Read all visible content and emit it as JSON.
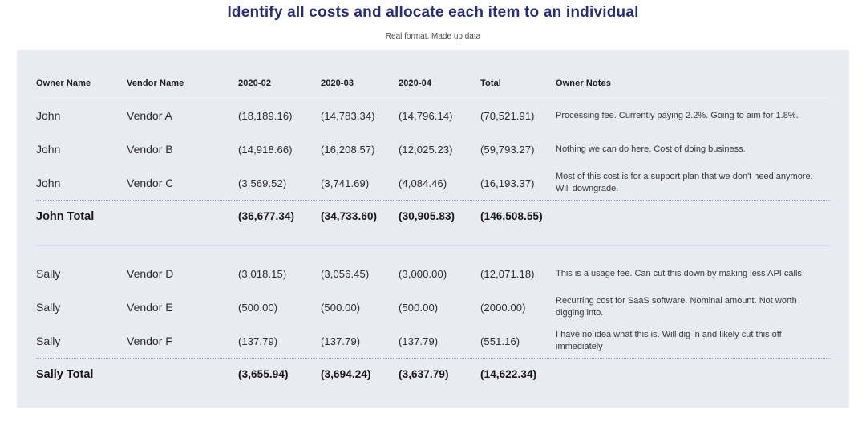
{
  "header": {
    "title": "Identify all costs and allocate each item to an individual",
    "subtitle": "Real format. Made up data"
  },
  "table": {
    "columns": [
      "Owner Name",
      "Vendor Name",
      "2020-02",
      "2020-03",
      "2020-04",
      "Total",
      "Owner Notes"
    ],
    "sections": [
      {
        "rows": [
          {
            "owner": "John",
            "vendor": "Vendor A",
            "m1": "(18,189.16)",
            "m2": "(14,783.34)",
            "m3": "(14,796.14)",
            "total": "(70,521.91)",
            "note": "Processing fee. Currently paying 2.2%. Going to aim for 1.8%."
          },
          {
            "owner": "John",
            "vendor": "Vendor B",
            "m1": "(14,918.66)",
            "m2": "(16,208.57)",
            "m3": "(12,025.23)",
            "total": "(59,793.27)",
            "note": "Nothing we can do here. Cost of doing business."
          },
          {
            "owner": "John",
            "vendor": "Vendor C",
            "m1": "(3,569.52)",
            "m2": "(3,741.69)",
            "m3": "(4,084.46)",
            "total": "(16,193.37)",
            "note": "Most of this cost is for a support plan that we don't need anymore. Will downgrade."
          }
        ],
        "total": {
          "label": "John Total",
          "m1": "(36,677.34)",
          "m2": "(34,733.60)",
          "m3": "(30,905.83)",
          "total": "(146,508.55)"
        },
        "divider_after": true
      },
      {
        "rows": [
          {
            "owner": "Sally",
            "vendor": "Vendor D",
            "m1": "(3,018.15)",
            "m2": "(3,056.45)",
            "m3": "(3,000.00)",
            "total": "(12,071.18)",
            "note": "This is a usage fee. Can cut this down by making less API calls."
          },
          {
            "owner": "Sally",
            "vendor": "Vendor E",
            "m1": "(500.00)",
            "m2": "(500.00)",
            "m3": "(500.00)",
            "total": "(2000.00)",
            "note": "Recurring cost for SaaS software. Nominal amount. Not worth digging into."
          },
          {
            "owner": "Sally",
            "vendor": "Vendor F",
            "m1": "(137.79)",
            "m2": "(137.79)",
            "m3": "(137.79)",
            "total": "(551.16)",
            "note": "I have no idea what this is. Will dig in and likely cut this off immediately"
          }
        ],
        "total": {
          "label": "Sally Total",
          "m1": "(3,655.94)",
          "m2": "(3,694.24)",
          "m3": "(3,637.79)",
          "total": "(14,622.34)"
        },
        "divider_after": false
      }
    ]
  },
  "colors": {
    "title_navy": "#2b2f6e",
    "card_background": "#e9eaf2"
  }
}
